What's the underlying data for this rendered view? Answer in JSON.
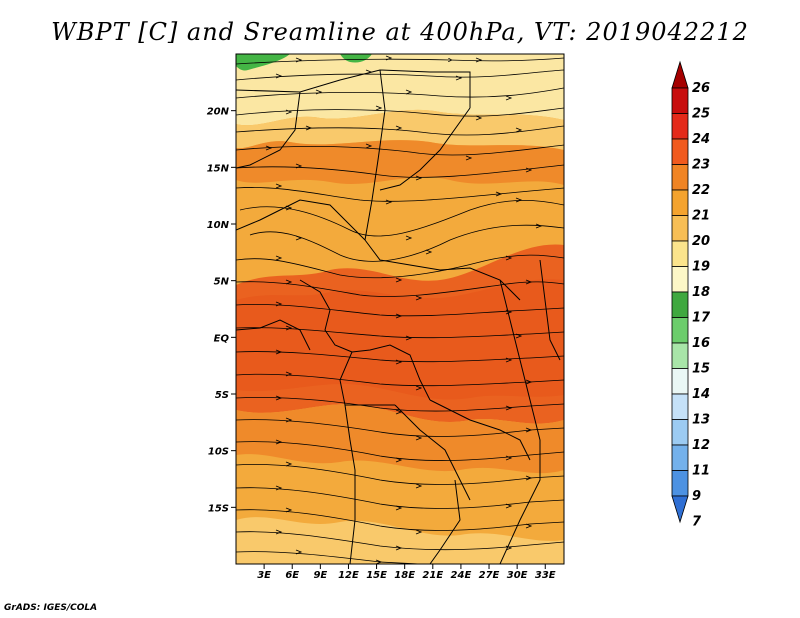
{
  "title": "WBPT [C] and Sreamline at 400hPa, VT: 2019042212",
  "credit": "GrADS: IGES/COLA",
  "colors": {
    "band_19": "#fbe7a3",
    "band_20": "#f9c96b",
    "band_21": "#f3aa3c",
    "band_22": "#ef8a2a",
    "band_23": "#ea6220",
    "land_green": "#44b545",
    "border": "#000000",
    "streamline": "#000000"
  },
  "map": {
    "lon_range": [
      0,
      35
    ],
    "lat_range": [
      -20,
      25
    ],
    "lat_ticks": [
      {
        "value": 20,
        "label": "20N"
      },
      {
        "value": 15,
        "label": "15N"
      },
      {
        "value": 10,
        "label": "10N"
      },
      {
        "value": 5,
        "label": "5N"
      },
      {
        "value": 0,
        "label": "EQ"
      },
      {
        "value": -5,
        "label": "5S"
      },
      {
        "value": -10,
        "label": "10S"
      },
      {
        "value": -15,
        "label": "15S"
      }
    ],
    "lon_ticks": [
      {
        "value": 3,
        "label": "3E"
      },
      {
        "value": 6,
        "label": "6E"
      },
      {
        "value": 9,
        "label": "9E"
      },
      {
        "value": 12,
        "label": "12E"
      },
      {
        "value": 15,
        "label": "15E"
      },
      {
        "value": 18,
        "label": "18E"
      },
      {
        "value": 21,
        "label": "21E"
      },
      {
        "value": 24,
        "label": "24E"
      },
      {
        "value": 27,
        "label": "27E"
      },
      {
        "value": 30,
        "label": "30E"
      },
      {
        "value": 33,
        "label": "33E"
      }
    ]
  },
  "colorbar": {
    "labels": [
      "26",
      "25",
      "24",
      "23",
      "22",
      "21",
      "20",
      "19",
      "18",
      "17",
      "16",
      "15",
      "14",
      "13",
      "12",
      "11",
      "9",
      "7"
    ],
    "colors": [
      "#a50000",
      "#c80d0d",
      "#e42a1a",
      "#f05a1e",
      "#f08424",
      "#f4a32e",
      "#f7be55",
      "#fbe48c",
      "#fdf7c7",
      "#3fa83f",
      "#6ccd6c",
      "#a8e5a8",
      "#eaf7f5",
      "#c5e1f8",
      "#9ccbf2",
      "#74b1eb",
      "#4d92e2",
      "#2f6fd4"
    ]
  }
}
